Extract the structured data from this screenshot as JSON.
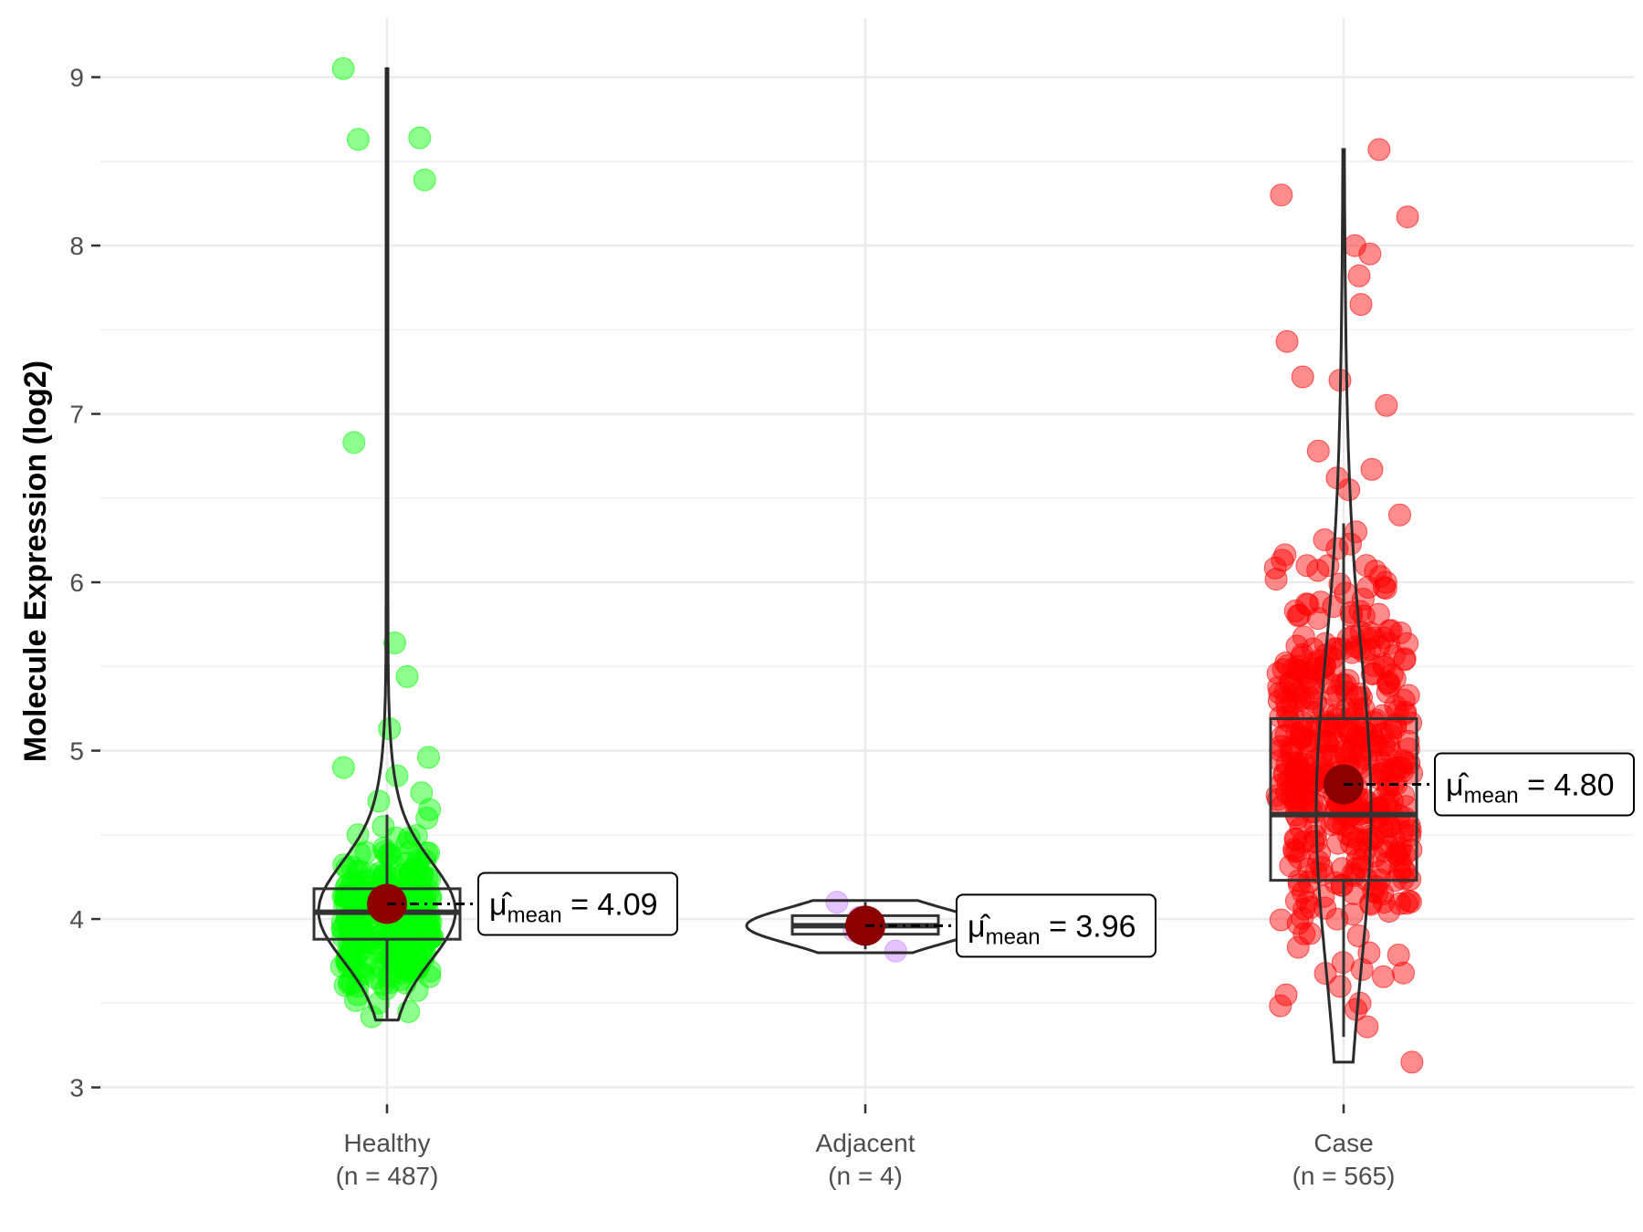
{
  "chart_data": {
    "type": "violin",
    "ylabel": "Molecule Expression (log2)",
    "xlabel": "",
    "title": "",
    "ylim": [
      2.9,
      9.35
    ],
    "yticks": [
      3,
      4,
      5,
      6,
      7,
      8,
      9
    ],
    "grid": true,
    "mean_symbol": "μ",
    "mean_subscript": "mean",
    "groups": [
      {
        "category": "Healthy",
        "n_label": "(n = 487)",
        "color": "#00ff00",
        "mean": 4.09,
        "mean_label": "4.09",
        "box": {
          "q1": 3.88,
          "median": 4.04,
          "q3": 4.18,
          "whisker_low": 3.4,
          "whisker_high": 4.62
        },
        "range": [
          3.4,
          9.05
        ],
        "points": [
          3.42,
          3.45,
          3.5,
          3.55,
          3.6,
          3.65,
          3.7,
          3.75,
          3.8,
          3.85,
          3.9,
          3.95,
          4.0,
          4.05,
          4.1,
          4.15,
          4.2,
          4.25,
          4.3,
          4.35,
          4.4,
          4.45,
          4.5,
          4.55,
          4.6,
          4.65,
          4.7,
          4.75,
          4.85,
          4.9,
          4.96,
          5.13,
          5.44,
          5.64,
          6.83,
          8.39,
          8.63,
          8.64,
          9.05
        ]
      },
      {
        "category": "Adjacent",
        "n_label": "(n = 4)",
        "color": "#c77cff",
        "mean": 3.96,
        "mean_label": "3.96",
        "box": {
          "q1": 3.91,
          "median": 3.96,
          "q3": 4.02,
          "whisker_low": 3.82,
          "whisker_high": 4.1
        },
        "range": [
          3.8,
          4.11
        ],
        "points": [
          3.81,
          3.93,
          4.01,
          4.1
        ]
      },
      {
        "category": "Case",
        "n_label": "(n = 565)",
        "color": "#ff0000",
        "mean": 4.8,
        "mean_label": "4.80",
        "box": {
          "q1": 4.23,
          "median": 4.62,
          "q3": 5.19,
          "whisker_low": 3.3,
          "whisker_high": 6.35
        },
        "range": [
          3.15,
          8.57
        ],
        "points": [
          3.15,
          3.36,
          3.5,
          3.55,
          3.6,
          3.7,
          3.8,
          3.9,
          4.0,
          4.1,
          4.2,
          4.3,
          4.4,
          4.5,
          4.6,
          4.7,
          4.8,
          4.9,
          5.0,
          5.1,
          5.2,
          5.3,
          5.4,
          5.5,
          5.6,
          5.7,
          5.8,
          5.9,
          6.0,
          6.1,
          6.2,
          6.3,
          6.4,
          6.55,
          6.62,
          6.67,
          6.78,
          7.05,
          7.2,
          7.22,
          7.43,
          7.65,
          7.82,
          7.95,
          8.0,
          8.17,
          8.3,
          8.57
        ]
      }
    ]
  }
}
